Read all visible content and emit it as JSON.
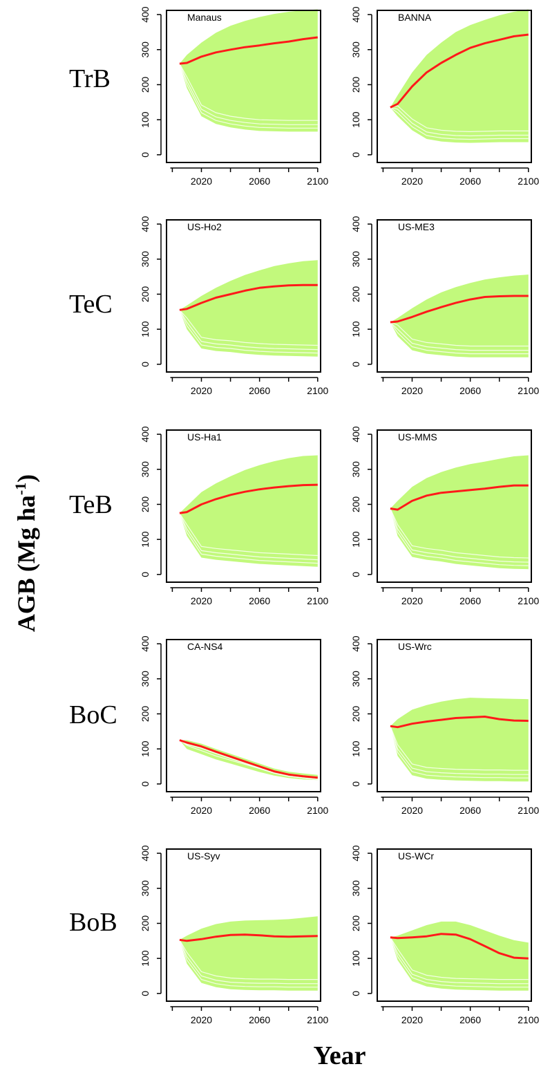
{
  "figure": {
    "ylabel_main": "AGB (Mg ha",
    "ylabel_sup": "-1",
    "ylabel_close": ")",
    "xlabel": "Year",
    "row_labels": [
      "TrB",
      "TeC",
      "TeB",
      "BoC",
      "BoB"
    ],
    "colors": {
      "envelope": "#c2f97c",
      "envelope_line": "#ffffff",
      "median": "#ff1a1a",
      "axis": "#000000"
    }
  },
  "chart_data": [
    {
      "type": "area",
      "title": "Manaus",
      "row": "TrB",
      "x": [
        2005,
        2010,
        2020,
        2030,
        2040,
        2050,
        2060,
        2070,
        2080,
        2090,
        2100
      ],
      "ylim": [
        0,
        410
      ],
      "xticks": [
        2020,
        2060,
        2100
      ],
      "yticks": [
        0,
        100,
        200,
        300,
        400
      ],
      "series": [
        {
          "role": "median",
          "values": [
            260,
            262,
            280,
            292,
            300,
            307,
            312,
            318,
            323,
            330,
            335
          ]
        },
        {
          "role": "upper",
          "values": [
            260,
            285,
            320,
            348,
            368,
            382,
            393,
            402,
            408,
            412,
            415
          ]
        },
        {
          "role": "lower",
          "values": [
            260,
            190,
            110,
            88,
            78,
            72,
            68,
            67,
            66,
            66,
            66
          ]
        }
      ]
    },
    {
      "type": "area",
      "title": "BANNA",
      "row": "TrB",
      "x": [
        2005,
        2010,
        2020,
        2030,
        2040,
        2050,
        2060,
        2070,
        2080,
        2090,
        2100
      ],
      "ylim": [
        0,
        410
      ],
      "xticks": [
        2020,
        2060,
        2100
      ],
      "yticks": [
        0,
        100,
        200,
        300,
        400
      ],
      "series": [
        {
          "role": "median",
          "values": [
            135,
            145,
            195,
            235,
            262,
            285,
            305,
            318,
            328,
            338,
            343
          ]
        },
        {
          "role": "upper",
          "values": [
            135,
            170,
            235,
            285,
            320,
            350,
            370,
            385,
            398,
            408,
            415
          ]
        },
        {
          "role": "lower",
          "values": [
            135,
            110,
            70,
            45,
            38,
            35,
            34,
            35,
            36,
            36,
            36
          ]
        }
      ]
    },
    {
      "type": "area",
      "title": "US-Ho2",
      "row": "TeC",
      "x": [
        2005,
        2010,
        2020,
        2030,
        2040,
        2050,
        2060,
        2070,
        2080,
        2090,
        2100
      ],
      "ylim": [
        0,
        410
      ],
      "xticks": [
        2020,
        2060,
        2100
      ],
      "yticks": [
        0,
        100,
        200,
        300,
        400
      ],
      "series": [
        {
          "role": "median",
          "values": [
            155,
            158,
            175,
            190,
            200,
            210,
            218,
            222,
            225,
            226,
            226
          ]
        },
        {
          "role": "upper",
          "values": [
            155,
            168,
            195,
            218,
            238,
            255,
            268,
            280,
            288,
            294,
            297
          ]
        },
        {
          "role": "lower",
          "values": [
            155,
            100,
            45,
            38,
            35,
            30,
            27,
            25,
            24,
            23,
            22
          ]
        }
      ]
    },
    {
      "type": "area",
      "title": "US-ME3",
      "row": "TeC",
      "x": [
        2005,
        2010,
        2020,
        2030,
        2040,
        2050,
        2060,
        2070,
        2080,
        2090,
        2100
      ],
      "ylim": [
        0,
        410
      ],
      "xticks": [
        2020,
        2060,
        2100
      ],
      "yticks": [
        0,
        100,
        200,
        300,
        400
      ],
      "series": [
        {
          "role": "median",
          "values": [
            120,
            122,
            135,
            150,
            163,
            175,
            185,
            192,
            194,
            195,
            195
          ]
        },
        {
          "role": "upper",
          "values": [
            120,
            132,
            160,
            185,
            205,
            220,
            232,
            242,
            248,
            253,
            256
          ]
        },
        {
          "role": "lower",
          "values": [
            120,
            80,
            40,
            30,
            26,
            22,
            20,
            20,
            20,
            20,
            20
          ]
        }
      ]
    },
    {
      "type": "area",
      "title": "US-Ha1",
      "row": "TeB",
      "x": [
        2005,
        2010,
        2020,
        2030,
        2040,
        2050,
        2060,
        2070,
        2080,
        2090,
        2100
      ],
      "ylim": [
        0,
        410
      ],
      "xticks": [
        2020,
        2060,
        2100
      ],
      "yticks": [
        0,
        100,
        200,
        300,
        400
      ],
      "series": [
        {
          "role": "median",
          "values": [
            175,
            178,
            200,
            215,
            227,
            236,
            243,
            248,
            252,
            255,
            256
          ]
        },
        {
          "role": "upper",
          "values": [
            175,
            195,
            235,
            260,
            280,
            298,
            312,
            323,
            332,
            338,
            340
          ]
        },
        {
          "role": "lower",
          "values": [
            175,
            110,
            48,
            42,
            38,
            34,
            30,
            28,
            26,
            24,
            22
          ]
        }
      ]
    },
    {
      "type": "area",
      "title": "US-MMS",
      "row": "TeB",
      "x": [
        2005,
        2010,
        2020,
        2030,
        2040,
        2050,
        2060,
        2070,
        2080,
        2090,
        2100
      ],
      "ylim": [
        0,
        410
      ],
      "xticks": [
        2020,
        2060,
        2100
      ],
      "yticks": [
        0,
        100,
        200,
        300,
        400
      ],
      "series": [
        {
          "role": "median",
          "values": [
            188,
            185,
            210,
            225,
            233,
            237,
            241,
            245,
            250,
            254,
            254
          ]
        },
        {
          "role": "upper",
          "values": [
            188,
            210,
            250,
            275,
            292,
            305,
            315,
            322,
            330,
            337,
            340
          ]
        },
        {
          "role": "lower",
          "values": [
            188,
            110,
            50,
            42,
            37,
            30,
            26,
            22,
            18,
            16,
            15
          ]
        }
      ]
    },
    {
      "type": "area",
      "title": "CA-NS4",
      "row": "BoC",
      "x": [
        2005,
        2010,
        2020,
        2030,
        2040,
        2050,
        2060,
        2070,
        2080,
        2090,
        2100
      ],
      "ylim": [
        0,
        410
      ],
      "xticks": [
        2020,
        2060,
        2100
      ],
      "yticks": [
        0,
        100,
        200,
        300,
        400
      ],
      "series": [
        {
          "role": "median",
          "values": [
            125,
            118,
            107,
            92,
            78,
            64,
            50,
            36,
            27,
            22,
            18
          ]
        },
        {
          "role": "upper",
          "values": [
            125,
            125,
            115,
            100,
            86,
            72,
            58,
            44,
            35,
            30,
            26
          ]
        },
        {
          "role": "lower",
          "values": [
            125,
            100,
            85,
            70,
            58,
            46,
            34,
            24,
            17,
            13,
            11
          ]
        }
      ]
    },
    {
      "type": "area",
      "title": "US-Wrc",
      "row": "BoC",
      "x": [
        2005,
        2010,
        2020,
        2030,
        2040,
        2050,
        2060,
        2070,
        2080,
        2090,
        2100
      ],
      "ylim": [
        0,
        410
      ],
      "xticks": [
        2020,
        2060,
        2100
      ],
      "yticks": [
        0,
        100,
        200,
        300,
        400
      ],
      "series": [
        {
          "role": "median",
          "values": [
            165,
            162,
            172,
            178,
            183,
            188,
            190,
            192,
            185,
            181,
            180
          ]
        },
        {
          "role": "upper",
          "values": [
            165,
            185,
            212,
            225,
            235,
            242,
            246,
            245,
            244,
            243,
            242
          ]
        },
        {
          "role": "lower",
          "values": [
            165,
            80,
            25,
            15,
            12,
            10,
            9,
            8,
            8,
            7,
            7
          ]
        }
      ]
    },
    {
      "type": "area",
      "title": "US-Syv",
      "row": "BoB",
      "x": [
        2005,
        2010,
        2020,
        2030,
        2040,
        2050,
        2060,
        2070,
        2080,
        2090,
        2100
      ],
      "ylim": [
        0,
        410
      ],
      "xticks": [
        2020,
        2060,
        2100
      ],
      "yticks": [
        0,
        100,
        200,
        300,
        400
      ],
      "series": [
        {
          "role": "median",
          "values": [
            153,
            150,
            155,
            162,
            167,
            168,
            166,
            163,
            162,
            163,
            164
          ]
        },
        {
          "role": "upper",
          "values": [
            153,
            165,
            185,
            198,
            205,
            208,
            209,
            210,
            212,
            216,
            220
          ]
        },
        {
          "role": "lower",
          "values": [
            153,
            85,
            30,
            18,
            12,
            10,
            9,
            9,
            8,
            8,
            8
          ]
        }
      ]
    },
    {
      "type": "area",
      "title": "US-WCr",
      "row": "BoB",
      "x": [
        2005,
        2010,
        2020,
        2030,
        2040,
        2050,
        2060,
        2070,
        2080,
        2090,
        2100
      ],
      "ylim": [
        0,
        410
      ],
      "xticks": [
        2020,
        2060,
        2100
      ],
      "yticks": [
        0,
        100,
        200,
        300,
        400
      ],
      "series": [
        {
          "role": "median",
          "values": [
            160,
            158,
            160,
            163,
            170,
            168,
            155,
            135,
            115,
            102,
            100
          ]
        },
        {
          "role": "upper",
          "values": [
            160,
            165,
            180,
            195,
            205,
            205,
            195,
            180,
            165,
            152,
            145
          ]
        },
        {
          "role": "lower",
          "values": [
            160,
            95,
            35,
            20,
            14,
            11,
            10,
            9,
            8,
            8,
            8
          ]
        }
      ]
    }
  ]
}
